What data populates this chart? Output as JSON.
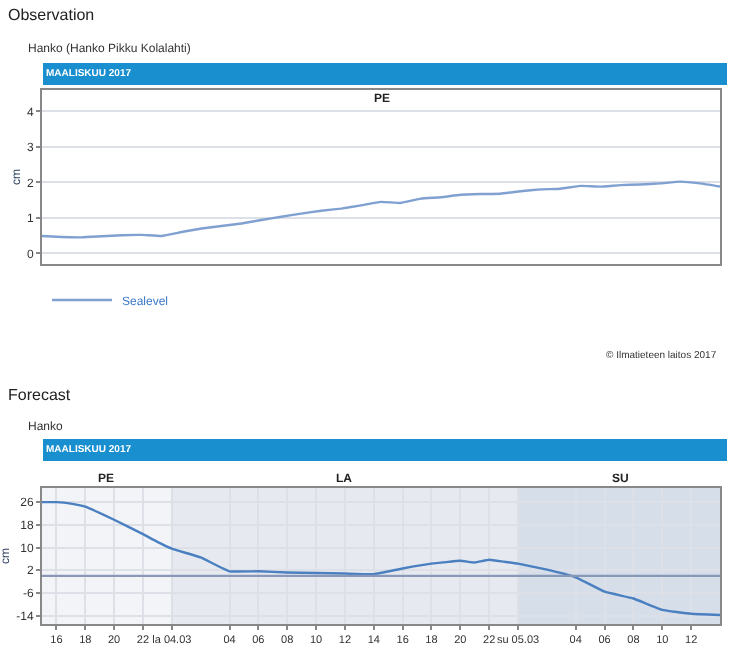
{
  "chart_data": [
    {
      "type": "line",
      "title": "Observation",
      "subtitle": "Hanko (Hanko Pikku Kolalahti)",
      "ylabel": "cm",
      "annotations": [
        "MAALISKUU 2017",
        "PE",
        "© Ilmatieteen laitos 2017"
      ],
      "categories": [
        null,
        null,
        null,
        null,
        null,
        null,
        null,
        null,
        null,
        null,
        null,
        null,
        null,
        null,
        null,
        null,
        null,
        null,
        null,
        null,
        null,
        null,
        null,
        null,
        null,
        null,
        null,
        null,
        null,
        null,
        null,
        null,
        null,
        null,
        null
      ],
      "series": [
        {
          "name": "Sealevel",
          "color": "#7fa0d0",
          "values": [
            0.49,
            0.46,
            0.45,
            0.48,
            0.51,
            0.52,
            0.49,
            0.6,
            0.7,
            0.77,
            0.84,
            0.94,
            1.03,
            1.12,
            1.2,
            1.26,
            1.35,
            1.45,
            1.42,
            1.54,
            1.58,
            1.65,
            1.67,
            1.68,
            1.75,
            1.8,
            1.82,
            1.9,
            1.88,
            1.92,
            1.94,
            1.97,
            2.02,
            1.97,
            1.88
          ]
        }
      ],
      "ylim": [
        -0.3,
        4.6
      ],
      "yticks": [
        0,
        1,
        2,
        3,
        4
      ],
      "grid": "y",
      "legend": "bottom left",
      "tick_labels": "y",
      "marker": "none",
      "line_style": "solid"
    },
    {
      "type": "line",
      "title": "Forecast",
      "subtitle": "Hanko",
      "ylabel": "cm",
      "annotations": [
        "MAALISKUU 2017"
      ],
      "x": [
        "2017-03-03T15:00",
        "2017-03-03T16:00",
        "2017-03-03T17:00",
        "2017-03-03T18:00",
        "2017-03-03T20:00",
        "2017-03-03T22:00",
        "2017-03-03T23:00",
        "2017-03-04T00:00",
        "2017-03-04T02:00",
        "2017-03-04T04:00",
        "2017-03-04T06:00",
        "2017-03-04T08:00",
        "2017-03-04T10:00",
        "2017-03-04T12:00",
        "2017-03-04T14:00",
        "2017-03-04T16:00",
        "2017-03-04T18:00",
        "2017-03-04T20:00",
        "2017-03-04T21:00",
        "2017-03-04T22:00",
        "2017-03-04T23:00",
        "2017-03-05T00:00",
        "2017-03-05T02:00",
        "2017-03-05T04:00",
        "2017-03-05T06:00",
        "2017-03-05T08:00",
        "2017-03-05T10:00",
        "2017-03-05T12:00",
        "2017-03-05T14:00"
      ],
      "series": [
        {
          "color": "#4a7fc0",
          "values": [
            26,
            26,
            25.5,
            24.4,
            19.8,
            14.7,
            12,
            9.6,
            6.5,
            1.6,
            1.6,
            1.2,
            1,
            0.8,
            0.6,
            2.6,
            4.3,
            5.3,
            4.7,
            5.7,
            5,
            4.3,
            2.2,
            -0.5,
            -5.6,
            -8,
            -12,
            -13.4,
            -13.8
          ]
        }
      ],
      "xlim": [
        "2017-03-03T15:00",
        "2017-03-05T14:00"
      ],
      "xticks": [
        {
          "value": "2017-03-03T16:00",
          "label": "16"
        },
        {
          "value": "2017-03-03T18:00",
          "label": "18"
        },
        {
          "value": "2017-03-03T20:00",
          "label": "20"
        },
        {
          "value": "2017-03-03T22:00",
          "label": "22"
        },
        {
          "value": "2017-03-04T00:00",
          "label": "la 04.03"
        },
        {
          "value": "2017-03-04T04:00",
          "label": "04"
        },
        {
          "value": "2017-03-04T06:00",
          "label": "06"
        },
        {
          "value": "2017-03-04T08:00",
          "label": "08"
        },
        {
          "value": "2017-03-04T10:00",
          "label": "10"
        },
        {
          "value": "2017-03-04T12:00",
          "label": "12"
        },
        {
          "value": "2017-03-04T14:00",
          "label": "14"
        },
        {
          "value": "2017-03-04T16:00",
          "label": "16"
        },
        {
          "value": "2017-03-04T18:00",
          "label": "18"
        },
        {
          "value": "2017-03-04T20:00",
          "label": "20"
        },
        {
          "value": "2017-03-04T22:00",
          "label": "22"
        },
        {
          "value": "2017-03-05T00:00",
          "label": "su 05.03"
        },
        {
          "value": "2017-03-05T04:00",
          "label": "04"
        },
        {
          "value": "2017-03-05T06:00",
          "label": "06"
        },
        {
          "value": "2017-03-05T08:00",
          "label": "08"
        },
        {
          "value": "2017-03-05T10:00",
          "label": "10"
        },
        {
          "value": "2017-03-05T12:00",
          "label": "12"
        }
      ],
      "ylim": [
        -17,
        31
      ],
      "yticks": [
        26,
        18,
        10,
        2,
        -6,
        -14
      ],
      "bands": [
        {
          "axis": "x",
          "from": "2017-03-03T15:00",
          "to": "2017-03-04T00:00",
          "label": "PE",
          "color": "#f3f4f7"
        },
        {
          "axis": "x",
          "from": "2017-03-04T00:00",
          "to": "2017-03-05T00:00",
          "label": "LA",
          "color": "#e6eaf0"
        },
        {
          "axis": "x",
          "from": "2017-03-05T00:00",
          "to": "2017-03-05T14:00",
          "label": "SU",
          "color": "#d6deea"
        }
      ],
      "ref_lines": [
        {
          "axis": "y",
          "value": 0,
          "color": "#8a98b8"
        }
      ],
      "grid": true,
      "marker": "none",
      "line_style": "solid"
    }
  ]
}
